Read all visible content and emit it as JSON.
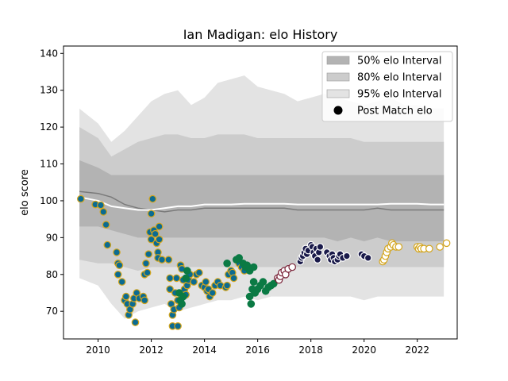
{
  "chart_data": {
    "type": "scatter",
    "title": "Ian Madigan: elo History",
    "xlabel": "",
    "ylabel": "elo score",
    "xlim": [
      2008.7,
      2023.5
    ],
    "ylim": [
      62.5,
      142
    ],
    "x_ticks": [
      2010,
      2012,
      2014,
      2016,
      2018,
      2020,
      2022
    ],
    "y_ticks": [
      70,
      80,
      90,
      100,
      110,
      120,
      130,
      140
    ],
    "grid": false,
    "legend_position": "top-right",
    "legend": [
      {
        "label": "50% elo Interval",
        "kind": "band",
        "color": "#b3b3b3"
      },
      {
        "label": "80% elo Interval",
        "kind": "band",
        "color": "#cccccc"
      },
      {
        "label": "95% elo Interval",
        "kind": "band",
        "color": "#e3e3e3"
      },
      {
        "label": "Post Match elo",
        "kind": "marker",
        "color": "#000000"
      }
    ],
    "bands": {
      "x": [
        2009.3,
        2010.0,
        2010.5,
        2011.0,
        2011.5,
        2012.0,
        2012.5,
        2013.0,
        2013.5,
        2014.0,
        2014.5,
        2015.0,
        2015.5,
        2016.0,
        2016.5,
        2017.0,
        2017.5,
        2018.0,
        2018.5,
        2019.0,
        2019.5,
        2020.0,
        2020.5,
        2021.0,
        2021.5,
        2022.0,
        2022.5,
        2023.0
      ],
      "q95_hi": [
        125,
        121,
        116,
        119,
        123,
        127,
        129,
        130,
        126,
        128,
        132,
        133,
        134,
        131,
        130,
        129,
        127,
        128,
        129,
        128,
        127,
        126,
        127,
        128,
        126,
        126,
        125,
        125
      ],
      "q90_hi": [
        120,
        117,
        112,
        114,
        116,
        117,
        118,
        118,
        117,
        117,
        118,
        118,
        118,
        117,
        117,
        117,
        117,
        117,
        117,
        117,
        117,
        116,
        116,
        116,
        116,
        116,
        116,
        116
      ],
      "q75_hi": [
        111,
        109,
        107,
        107,
        107,
        107,
        107,
        107,
        107,
        107,
        107,
        107,
        107,
        107,
        107,
        107,
        107,
        107,
        107,
        107,
        107,
        107,
        107,
        107,
        107,
        107,
        107,
        107
      ],
      "median": [
        102.5,
        102,
        101,
        99,
        98,
        97.5,
        97,
        97.5,
        97.5,
        98,
        98,
        98,
        98,
        98,
        98,
        98,
        97.5,
        97.5,
        97.5,
        97.5,
        97.5,
        97.5,
        98,
        97.5,
        97.5,
        97.5,
        97.5,
        97.5
      ],
      "mean": [
        101,
        100,
        98.5,
        98,
        97.5,
        97.5,
        98,
        98.5,
        98.5,
        99,
        99,
        99,
        99.2,
        99.2,
        99.2,
        99.2,
        99,
        99,
        99,
        99,
        99,
        99,
        99,
        99.2,
        99.2,
        99.2,
        99,
        99
      ],
      "q25_lo": [
        93,
        93,
        92,
        91,
        90,
        90,
        90,
        90,
        90,
        90,
        90,
        90,
        90,
        90,
        90,
        90,
        90,
        90,
        90,
        89,
        90,
        89,
        90,
        89,
        89,
        89,
        89,
        89
      ],
      "q10_lo": [
        84,
        83,
        83,
        82,
        81,
        82,
        82,
        82,
        82,
        82,
        82,
        82,
        82,
        82,
        82,
        82,
        82,
        82,
        82,
        82,
        82,
        82,
        82,
        82,
        82,
        82,
        82,
        82
      ],
      "q05_lo": [
        79,
        77,
        72,
        68,
        70,
        71,
        72,
        70,
        71,
        72,
        73,
        73,
        74,
        73,
        74,
        74,
        74,
        74,
        74,
        74,
        74,
        73,
        74,
        74,
        74,
        74,
        74,
        74
      ]
    },
    "series": [
      {
        "face": "#0b6b91",
        "edge": "#d4a51c",
        "points": [
          [
            2009.35,
            100.5
          ],
          [
            2009.9,
            99
          ],
          [
            2010.1,
            98.8
          ],
          [
            2010.2,
            97
          ],
          [
            2010.3,
            93.5
          ],
          [
            2010.35,
            88
          ],
          [
            2010.7,
            86
          ],
          [
            2010.75,
            83
          ],
          [
            2010.8,
            82.5
          ],
          [
            2010.75,
            80
          ],
          [
            2010.9,
            78
          ],
          [
            2011.0,
            73
          ],
          [
            2011.05,
            74
          ],
          [
            2011.1,
            72
          ],
          [
            2011.15,
            69
          ],
          [
            2011.2,
            70.5
          ],
          [
            2011.3,
            72
          ],
          [
            2011.35,
            73.5
          ],
          [
            2011.4,
            67
          ],
          [
            2011.45,
            75
          ],
          [
            2011.55,
            73.5
          ],
          [
            2011.7,
            74
          ],
          [
            2011.75,
            73
          ],
          [
            2011.75,
            80
          ],
          [
            2011.8,
            83
          ],
          [
            2011.85,
            80.5
          ],
          [
            2011.9,
            85.5
          ],
          [
            2011.95,
            91.5
          ],
          [
            2012.0,
            89.5
          ],
          [
            2012.0,
            96.5
          ],
          [
            2012.05,
            100.5
          ],
          [
            2012.1,
            92
          ],
          [
            2012.15,
            91
          ],
          [
            2012.2,
            88.5
          ],
          [
            2012.25,
            86
          ],
          [
            2012.25,
            84.5
          ],
          [
            2012.3,
            93
          ],
          [
            2012.3,
            89.5
          ],
          [
            2012.4,
            84
          ],
          [
            2012.65,
            84
          ],
          [
            2012.7,
            79
          ],
          [
            2012.7,
            76
          ],
          [
            2012.75,
            72
          ],
          [
            2012.8,
            69
          ],
          [
            2012.8,
            66
          ],
          [
            2012.85,
            70.5
          ],
          [
            2012.9,
            75
          ],
          [
            2012.95,
            79
          ],
          [
            2013.0,
            73
          ],
          [
            2013.0,
            66
          ],
          [
            2013.05,
            71
          ],
          [
            2013.1,
            82.5
          ],
          [
            2013.15,
            81.5
          ],
          [
            2013.2,
            78.5
          ],
          [
            2013.25,
            76
          ],
          [
            2013.3,
            74.5
          ],
          [
            2013.35,
            77
          ],
          [
            2013.4,
            78.5
          ],
          [
            2013.45,
            80
          ],
          [
            2013.6,
            78
          ],
          [
            2013.7,
            80
          ],
          [
            2013.8,
            80.5
          ],
          [
            2013.9,
            77
          ],
          [
            2014.0,
            76.5
          ],
          [
            2014.05,
            78
          ],
          [
            2014.1,
            75.5
          ],
          [
            2014.15,
            76
          ],
          [
            2014.2,
            74
          ],
          [
            2014.3,
            75
          ],
          [
            2014.4,
            77
          ],
          [
            2014.5,
            78
          ],
          [
            2014.6,
            77
          ],
          [
            2014.8,
            76.5
          ],
          [
            2014.85,
            77
          ],
          [
            2014.9,
            80
          ],
          [
            2015.0,
            81
          ],
          [
            2015.05,
            80.5
          ],
          [
            2015.1,
            79
          ],
          [
            2015.3,
            83
          ],
          [
            2015.4,
            82
          ],
          [
            2015.5,
            81
          ]
        ]
      },
      {
        "face": "#0b7a44",
        "edge": "#0b7a44",
        "points": [
          [
            2013.05,
            75
          ],
          [
            2013.1,
            73
          ],
          [
            2013.15,
            72
          ],
          [
            2013.2,
            74
          ],
          [
            2013.3,
            79
          ],
          [
            2013.35,
            81
          ],
          [
            2014.85,
            83
          ],
          [
            2015.2,
            84
          ],
          [
            2015.3,
            84.5
          ],
          [
            2015.45,
            83
          ],
          [
            2015.55,
            82
          ],
          [
            2015.6,
            82.5
          ],
          [
            2015.7,
            81
          ],
          [
            2015.85,
            82
          ],
          [
            2015.7,
            74
          ],
          [
            2015.75,
            72
          ],
          [
            2015.8,
            76
          ],
          [
            2015.85,
            78
          ],
          [
            2015.9,
            75
          ],
          [
            2016.0,
            76
          ],
          [
            2016.1,
            77
          ],
          [
            2016.2,
            78
          ],
          [
            2016.3,
            75.5
          ],
          [
            2016.4,
            76.5
          ],
          [
            2016.5,
            77
          ],
          [
            2016.6,
            77.5
          ]
        ]
      },
      {
        "face": "#ffffff",
        "edge": "#7a2338",
        "points": [
          [
            2016.75,
            79
          ],
          [
            2016.8,
            78.5
          ],
          [
            2016.85,
            79.5
          ],
          [
            2016.9,
            80.5
          ],
          [
            2017.0,
            81
          ],
          [
            2017.05,
            80
          ],
          [
            2017.15,
            81.5
          ],
          [
            2017.3,
            82
          ]
        ]
      },
      {
        "face": "#1a1a4a",
        "edge": "#ffffff",
        "points": [
          [
            2017.6,
            83.5
          ],
          [
            2017.65,
            84.5
          ],
          [
            2017.7,
            85
          ],
          [
            2017.75,
            86
          ],
          [
            2017.8,
            87
          ],
          [
            2017.85,
            85.5
          ],
          [
            2017.9,
            86.5
          ],
          [
            2018.0,
            88
          ],
          [
            2018.05,
            87.5
          ],
          [
            2018.1,
            86
          ],
          [
            2018.15,
            85
          ],
          [
            2018.2,
            87
          ],
          [
            2018.25,
            84
          ],
          [
            2018.3,
            86
          ],
          [
            2018.35,
            87.5
          ],
          [
            2018.6,
            86
          ],
          [
            2018.7,
            85
          ],
          [
            2018.75,
            84
          ],
          [
            2018.8,
            85.5
          ],
          [
            2018.85,
            84.5
          ],
          [
            2018.9,
            83.5
          ],
          [
            2019.0,
            84
          ],
          [
            2019.05,
            85
          ],
          [
            2019.1,
            85.5
          ],
          [
            2019.2,
            84.5
          ],
          [
            2019.35,
            85
          ],
          [
            2019.9,
            85.5
          ],
          [
            2020.0,
            85
          ],
          [
            2020.15,
            84.5
          ]
        ]
      },
      {
        "face": "#ffffff",
        "edge": "#d4a51c",
        "points": [
          [
            2020.7,
            83.5
          ],
          [
            2020.75,
            84
          ],
          [
            2020.8,
            85
          ],
          [
            2020.85,
            86
          ],
          [
            2020.9,
            87
          ],
          [
            2021.0,
            87.5
          ],
          [
            2021.05,
            88.5
          ],
          [
            2021.1,
            88
          ],
          [
            2021.2,
            87.5
          ],
          [
            2021.3,
            87.5
          ],
          [
            2022.0,
            87.5
          ],
          [
            2022.05,
            87
          ],
          [
            2022.1,
            87.5
          ],
          [
            2022.15,
            87
          ],
          [
            2022.25,
            87
          ],
          [
            2022.45,
            87
          ],
          [
            2022.85,
            87.5
          ],
          [
            2023.1,
            88.5
          ]
        ]
      }
    ]
  }
}
